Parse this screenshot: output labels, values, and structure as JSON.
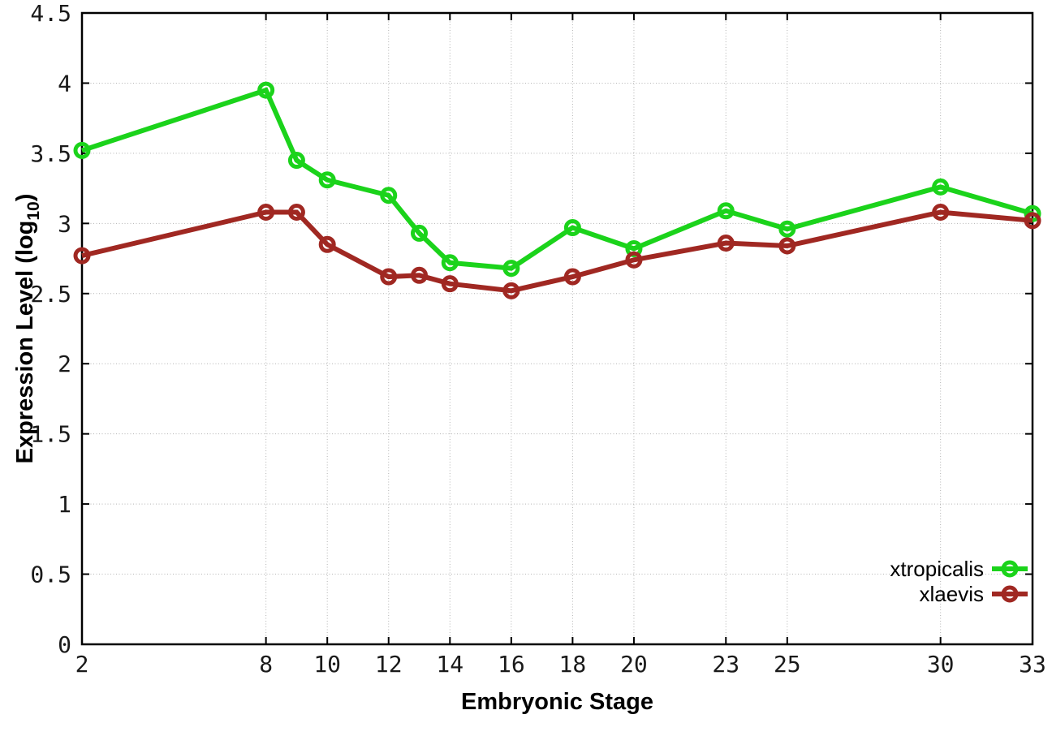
{
  "figure": {
    "background": "#ffffff",
    "border_color": "#000000",
    "grid_color": "#b4b4b4",
    "tick_label_color": "#1a1a1a",
    "title_color": "#000000"
  },
  "chart_data": {
    "type": "line",
    "title": "",
    "xlabel": "Embryonic Stage",
    "ylabel": "Expression Level (log10)",
    "ylabel_parts": {
      "main": "Expression Level (log",
      "sub": "10",
      "close": ")"
    },
    "xlim": [
      2,
      33
    ],
    "ylim": [
      0,
      4.5
    ],
    "xticks": [
      2,
      8,
      10,
      12,
      14,
      16,
      18,
      20,
      23,
      25,
      30,
      33
    ],
    "yticks": [
      0,
      0.5,
      1,
      1.5,
      2,
      2.5,
      3,
      3.5,
      4,
      4.5
    ],
    "grid": true,
    "legend_position": "bottom-right",
    "x": [
      2,
      8,
      9,
      10,
      12,
      13,
      14,
      16,
      18,
      20,
      23,
      25,
      30,
      33
    ],
    "series": [
      {
        "name": "xtropicalis",
        "color": "#1bd31b",
        "values": [
          3.52,
          3.95,
          3.45,
          3.31,
          3.2,
          2.93,
          2.72,
          2.68,
          2.97,
          2.82,
          3.09,
          2.96,
          3.26,
          3.07
        ]
      },
      {
        "name": "xlaevis",
        "color": "#a02822",
        "values": [
          2.77,
          3.08,
          3.08,
          2.85,
          2.62,
          2.63,
          2.57,
          2.52,
          2.62,
          2.74,
          2.86,
          2.84,
          3.08,
          3.02
        ]
      }
    ]
  }
}
